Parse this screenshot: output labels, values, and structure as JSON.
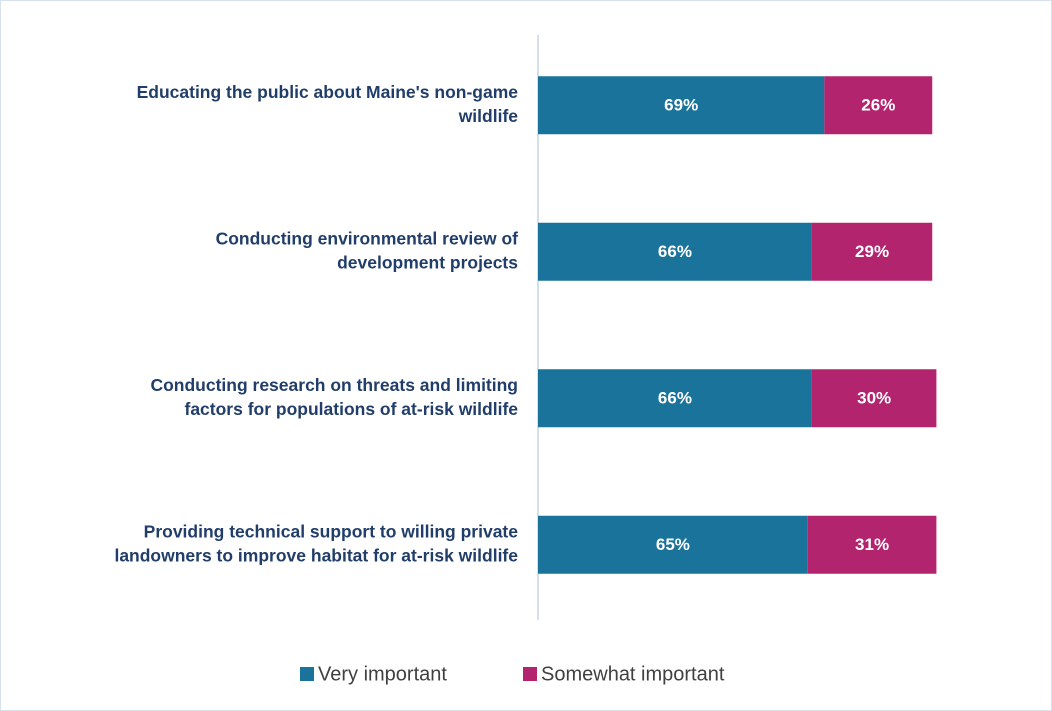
{
  "chart_data": {
    "type": "stacked-barh",
    "categories": [
      [
        "Educating the public about Maine's non-game",
        "wildlife"
      ],
      [
        "Conducting environmental review of",
        "development projects"
      ],
      [
        "Conducting research on threats and limiting",
        "factors for populations of at-risk wildlife"
      ],
      [
        "Providing technical support to willing private",
        "landowners to improve habitat for at-risk wildlife"
      ]
    ],
    "series": [
      {
        "name": "Very important",
        "color": "#1a739b",
        "values": [
          69,
          66,
          66,
          65
        ],
        "value_labels": [
          "69%",
          "66%",
          "66%",
          "65%"
        ]
      },
      {
        "name": "Somewhat important",
        "color": "#b3246f",
        "values": [
          26,
          29,
          30,
          31
        ],
        "value_labels": [
          "26%",
          "29%",
          "30%",
          "31%"
        ]
      }
    ],
    "xlim": [
      0,
      100
    ],
    "legend": "bottom"
  }
}
